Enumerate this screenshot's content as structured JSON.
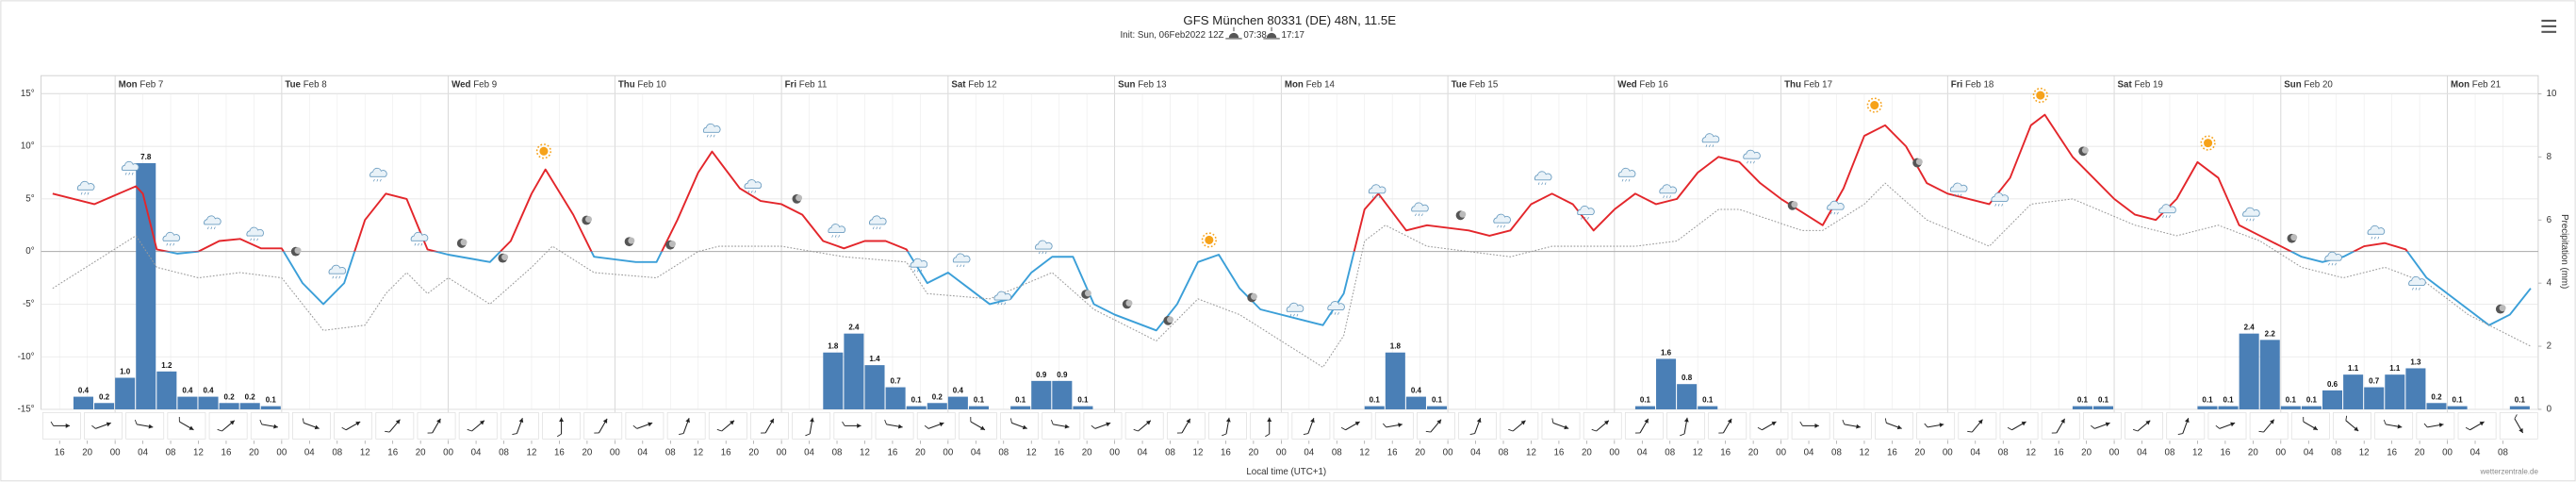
{
  "chart_data": {
    "type": "meteogram",
    "title": "GFS München 80331 (DE) 48N, 11.5E",
    "subtitle": "Init: Sun, 06Feb2022 12Z",
    "sunrise": "07:38",
    "sunset": "17:17",
    "xlabel": "Local time (UTC+1)",
    "y2label": "Precipitation (mm)",
    "credit": "wetterzentrale.de",
    "xlim": [
      "2022-02-06T13:20",
      "2022-02-21T13:05"
    ],
    "ylim": [
      -15,
      15
    ],
    "yticks": [
      {
        "value": 15,
        "label": "15°"
      },
      {
        "value": 10,
        "label": "10°"
      },
      {
        "value": 5,
        "label": "5°"
      },
      {
        "value": 0,
        "label": "0°"
      },
      {
        "value": -5,
        "label": "-5°"
      },
      {
        "value": -10,
        "label": "-10°"
      },
      {
        "value": -15,
        "label": "-15°"
      }
    ],
    "y2lim": [
      0,
      10
    ],
    "y2ticks": [
      0,
      2,
      4,
      6,
      8,
      10
    ],
    "grid": true,
    "days": [
      {
        "value": "2022-02-07T00:00",
        "weekday": "Mon",
        "date": "Feb 7"
      },
      {
        "value": "2022-02-08T00:00",
        "weekday": "Tue",
        "date": "Feb 8"
      },
      {
        "value": "2022-02-09T00:00",
        "weekday": "Wed",
        "date": "Feb 9"
      },
      {
        "value": "2022-02-10T00:00",
        "weekday": "Thu",
        "date": "Feb 10"
      },
      {
        "value": "2022-02-11T00:00",
        "weekday": "Fri",
        "date": "Feb 11"
      },
      {
        "value": "2022-02-12T00:00",
        "weekday": "Sat",
        "date": "Feb 12"
      },
      {
        "value": "2022-02-13T00:00",
        "weekday": "Sun",
        "date": "Feb 13"
      },
      {
        "value": "2022-02-14T00:00",
        "weekday": "Mon",
        "date": "Feb 14"
      },
      {
        "value": "2022-02-15T00:00",
        "weekday": "Tue",
        "date": "Feb 15"
      },
      {
        "value": "2022-02-16T00:00",
        "weekday": "Wed",
        "date": "Feb 16"
      },
      {
        "value": "2022-02-17T00:00",
        "weekday": "Thu",
        "date": "Feb 17"
      },
      {
        "value": "2022-02-18T00:00",
        "weekday": "Fri",
        "date": "Feb 18"
      },
      {
        "value": "2022-02-19T00:00",
        "weekday": "Sat",
        "date": "Feb 19"
      },
      {
        "value": "2022-02-20T00:00",
        "weekday": "Sun",
        "date": "Feb 20"
      },
      {
        "value": "2022-02-21T00:00",
        "weekday": "Mon",
        "date": "Feb 21"
      }
    ],
    "hour_ticks": [
      {
        "value": "2022-02-06T16:00",
        "label": "16"
      },
      {
        "value": "2022-02-06T20:00",
        "label": "20"
      },
      {
        "value": "2022-02-07T00:00",
        "label": "00"
      },
      {
        "value": "2022-02-07T04:00",
        "label": "04"
      },
      {
        "value": "2022-02-07T08:00",
        "label": "08"
      },
      {
        "value": "2022-02-07T12:00",
        "label": "12"
      },
      {
        "value": "2022-02-07T16:00",
        "label": "16"
      },
      {
        "value": "2022-02-07T20:00",
        "label": "20"
      },
      {
        "value": "2022-02-08T00:00",
        "label": "00"
      },
      {
        "value": "2022-02-08T04:00",
        "label": "04"
      },
      {
        "value": "2022-02-08T08:00",
        "label": "08"
      },
      {
        "value": "2022-02-08T12:00",
        "label": "12"
      },
      {
        "value": "2022-02-08T16:00",
        "label": "16"
      },
      {
        "value": "2022-02-08T20:00",
        "label": "20"
      },
      {
        "value": "2022-02-09T00:00",
        "label": "00"
      },
      {
        "value": "2022-02-09T04:00",
        "label": "04"
      },
      {
        "value": "2022-02-09T08:00",
        "label": "08"
      },
      {
        "value": "2022-02-09T12:00",
        "label": "12"
      },
      {
        "value": "2022-02-09T16:00",
        "label": "16"
      },
      {
        "value": "2022-02-09T20:00",
        "label": "20"
      },
      {
        "value": "2022-02-10T00:00",
        "label": "00"
      },
      {
        "value": "2022-02-10T04:00",
        "label": "04"
      },
      {
        "value": "2022-02-10T08:00",
        "label": "08"
      },
      {
        "value": "2022-02-10T12:00",
        "label": "12"
      },
      {
        "value": "2022-02-10T16:00",
        "label": "16"
      },
      {
        "value": "2022-02-10T20:00",
        "label": "20"
      },
      {
        "value": "2022-02-11T00:00",
        "label": "00"
      },
      {
        "value": "2022-02-11T04:00",
        "label": "04"
      },
      {
        "value": "2022-02-11T08:00",
        "label": "08"
      },
      {
        "value": "2022-02-11T12:00",
        "label": "12"
      },
      {
        "value": "2022-02-11T16:00",
        "label": "16"
      },
      {
        "value": "2022-02-11T20:00",
        "label": "20"
      },
      {
        "value": "2022-02-12T00:00",
        "label": "00"
      },
      {
        "value": "2022-02-12T04:00",
        "label": "04"
      },
      {
        "value": "2022-02-12T08:00",
        "label": "08"
      },
      {
        "value": "2022-02-12T12:00",
        "label": "12"
      },
      {
        "value": "2022-02-12T16:00",
        "label": "16"
      },
      {
        "value": "2022-02-12T20:00",
        "label": "20"
      },
      {
        "value": "2022-02-13T00:00",
        "label": "00"
      },
      {
        "value": "2022-02-13T04:00",
        "label": "04"
      },
      {
        "value": "2022-02-13T08:00",
        "label": "08"
      },
      {
        "value": "2022-02-13T12:00",
        "label": "12"
      },
      {
        "value": "2022-02-13T16:00",
        "label": "16"
      },
      {
        "value": "2022-02-13T20:00",
        "label": "20"
      },
      {
        "value": "2022-02-14T00:00",
        "label": "00"
      },
      {
        "value": "2022-02-14T04:00",
        "label": "04"
      },
      {
        "value": "2022-02-14T08:00",
        "label": "08"
      },
      {
        "value": "2022-02-14T12:00",
        "label": "12"
      },
      {
        "value": "2022-02-14T16:00",
        "label": "16"
      },
      {
        "value": "2022-02-14T20:00",
        "label": "20"
      },
      {
        "value": "2022-02-15T00:00",
        "label": "00"
      },
      {
        "value": "2022-02-15T04:00",
        "label": "04"
      },
      {
        "value": "2022-02-15T08:00",
        "label": "08"
      },
      {
        "value": "2022-02-15T12:00",
        "label": "12"
      },
      {
        "value": "2022-02-15T16:00",
        "label": "16"
      },
      {
        "value": "2022-02-15T20:00",
        "label": "20"
      },
      {
        "value": "2022-02-16T00:00",
        "label": "00"
      },
      {
        "value": "2022-02-16T04:00",
        "label": "04"
      },
      {
        "value": "2022-02-16T08:00",
        "label": "08"
      },
      {
        "value": "2022-02-16T12:00",
        "label": "12"
      },
      {
        "value": "2022-02-16T16:00",
        "label": "16"
      },
      {
        "value": "2022-02-16T20:00",
        "label": "20"
      },
      {
        "value": "2022-02-17T00:00",
        "label": "00"
      },
      {
        "value": "2022-02-17T04:00",
        "label": "04"
      },
      {
        "value": "2022-02-17T08:00",
        "label": "08"
      },
      {
        "value": "2022-02-17T12:00",
        "label": "12"
      },
      {
        "value": "2022-02-17T16:00",
        "label": "16"
      },
      {
        "value": "2022-02-17T20:00",
        "label": "20"
      },
      {
        "value": "2022-02-18T00:00",
        "label": "00"
      },
      {
        "value": "2022-02-18T04:00",
        "label": "04"
      },
      {
        "value": "2022-02-18T08:00",
        "label": "08"
      },
      {
        "value": "2022-02-18T12:00",
        "label": "12"
      },
      {
        "value": "2022-02-18T16:00",
        "label": "16"
      },
      {
        "value": "2022-02-18T20:00",
        "label": "20"
      },
      {
        "value": "2022-02-19T00:00",
        "label": "00"
      },
      {
        "value": "2022-02-19T04:00",
        "label": "04"
      },
      {
        "value": "2022-02-19T08:00",
        "label": "08"
      },
      {
        "value": "2022-02-19T12:00",
        "label": "12"
      },
      {
        "value": "2022-02-19T16:00",
        "label": "16"
      },
      {
        "value": "2022-02-19T20:00",
        "label": "20"
      },
      {
        "value": "2022-02-20T00:00",
        "label": "00"
      },
      {
        "value": "2022-02-20T04:00",
        "label": "04"
      },
      {
        "value": "2022-02-20T08:00",
        "label": "08"
      },
      {
        "value": "2022-02-20T12:00",
        "label": "12"
      },
      {
        "value": "2022-02-20T16:00",
        "label": "16"
      },
      {
        "value": "2022-02-20T20:00",
        "label": "20"
      },
      {
        "value": "2022-02-21T00:00",
        "label": "00"
      },
      {
        "value": "2022-02-21T04:00",
        "label": "04"
      },
      {
        "value": "2022-02-21T08:00",
        "label": "08"
      }
    ],
    "series": [
      {
        "color": "#e3262b",
        "color_below_zero": "#3b9fd8",
        "dash": false,
        "x": [
          "2022-02-06T15:00",
          "2022-02-06T21:00",
          "2022-02-07T03:00",
          "2022-02-07T04:00",
          "2022-02-07T06:00",
          "2022-02-07T09:00",
          "2022-02-07T12:00",
          "2022-02-07T15:00",
          "2022-02-07T18:00",
          "2022-02-07T21:00",
          "2022-02-08T00:00",
          "2022-02-08T03:00",
          "2022-02-08T06:00",
          "2022-02-08T09:00",
          "2022-02-08T12:00",
          "2022-02-08T15:00",
          "2022-02-08T18:00",
          "2022-02-08T21:00",
          "2022-02-09T00:00",
          "2022-02-09T06:00",
          "2022-02-09T09:00",
          "2022-02-09T12:00",
          "2022-02-09T14:00",
          "2022-02-09T18:00",
          "2022-02-09T21:00",
          "2022-02-10T03:00",
          "2022-02-10T06:00",
          "2022-02-10T09:00",
          "2022-02-10T12:00",
          "2022-02-10T14:00",
          "2022-02-10T18:00",
          "2022-02-10T21:00",
          "2022-02-11T00:00",
          "2022-02-11T03:00",
          "2022-02-11T06:00",
          "2022-02-11T09:00",
          "2022-02-11T12:00",
          "2022-02-11T15:00",
          "2022-02-11T18:00",
          "2022-02-11T21:00",
          "2022-02-12T00:00",
          "2022-02-12T03:00",
          "2022-02-12T06:00",
          "2022-02-12T09:00",
          "2022-02-12T12:00",
          "2022-02-12T15:00",
          "2022-02-12T18:00",
          "2022-02-12T21:00",
          "2022-02-13T00:00",
          "2022-02-13T06:00",
          "2022-02-13T09:00",
          "2022-02-13T12:00",
          "2022-02-13T15:00",
          "2022-02-13T18:00",
          "2022-02-13T21:00",
          "2022-02-14T03:00",
          "2022-02-14T06:00",
          "2022-02-14T09:00",
          "2022-02-14T12:00",
          "2022-02-14T14:00",
          "2022-02-14T18:00",
          "2022-02-14T21:00",
          "2022-02-15T03:00",
          "2022-02-15T06:00",
          "2022-02-15T09:00",
          "2022-02-15T12:00",
          "2022-02-15T15:00",
          "2022-02-15T18:00",
          "2022-02-15T21:00",
          "2022-02-16T00:00",
          "2022-02-16T03:00",
          "2022-02-16T06:00",
          "2022-02-16T09:00",
          "2022-02-16T12:00",
          "2022-02-16T15:00",
          "2022-02-16T18:00",
          "2022-02-16T21:00",
          "2022-02-17T00:00",
          "2022-02-17T06:00",
          "2022-02-17T09:00",
          "2022-02-17T12:00",
          "2022-02-17T15:00",
          "2022-02-17T18:00",
          "2022-02-17T21:00",
          "2022-02-18T00:00",
          "2022-02-18T06:00",
          "2022-02-18T09:00",
          "2022-02-18T12:00",
          "2022-02-18T14:00",
          "2022-02-18T18:00",
          "2022-02-18T21:00",
          "2022-02-19T00:00",
          "2022-02-19T03:00",
          "2022-02-19T06:00",
          "2022-02-19T09:00",
          "2022-02-19T12:00",
          "2022-02-19T15:00",
          "2022-02-19T18:00",
          "2022-02-19T21:00",
          "2022-02-20T00:00",
          "2022-02-20T03:00",
          "2022-02-20T06:00",
          "2022-02-20T09:00",
          "2022-02-20T12:00",
          "2022-02-20T15:00",
          "2022-02-20T18:00",
          "2022-02-20T21:00",
          "2022-02-21T00:00",
          "2022-02-21T06:00",
          "2022-02-21T09:00",
          "2022-02-21T12:00"
        ],
        "values": [
          5.5,
          4.5,
          6.2,
          5.5,
          0.2,
          -0.2,
          0,
          1,
          1.2,
          0.3,
          0.3,
          -3,
          -5,
          -3,
          3,
          5.5,
          5,
          0.2,
          -0.3,
          -1,
          1,
          5.5,
          7.8,
          3.5,
          -0.5,
          -1,
          -1,
          3,
          7.5,
          9.5,
          6,
          4.8,
          4.5,
          3.5,
          1,
          0.3,
          1,
          1,
          0.2,
          -3,
          -2,
          -3.5,
          -5,
          -4.5,
          -2,
          -0.5,
          -0.5,
          -5,
          -6,
          -7.5,
          -5,
          -1,
          -0.3,
          -3.5,
          -5.5,
          -6.5,
          -7,
          -4,
          4,
          5.5,
          2,
          2.5,
          2,
          1.5,
          2,
          4.5,
          5.5,
          4.5,
          2,
          4,
          5.5,
          4.5,
          5,
          7.5,
          9,
          8.5,
          6.5,
          5,
          2.5,
          6,
          11,
          12,
          10,
          6.5,
          5.5,
          4.5,
          7,
          12,
          13,
          9,
          7,
          5,
          3.5,
          3,
          5,
          8.5,
          7,
          2.5,
          1.5,
          0.5,
          -0.5,
          -1,
          -0.5,
          0.5,
          0.8,
          0.2,
          -2.5,
          -4,
          -7,
          -6,
          -3.5
        ]
      },
      {
        "color": "#9a9a9a",
        "dash": true,
        "x": [
          "2022-02-06T15:00",
          "2022-02-06T21:00",
          "2022-02-07T03:00",
          "2022-02-07T06:00",
          "2022-02-07T12:00",
          "2022-02-07T18:00",
          "2022-02-08T00:00",
          "2022-02-08T06:00",
          "2022-02-08T12:00",
          "2022-02-08T15:00",
          "2022-02-08T18:00",
          "2022-02-08T21:00",
          "2022-02-09T00:00",
          "2022-02-09T06:00",
          "2022-02-09T12:00",
          "2022-02-09T15:00",
          "2022-02-09T21:00",
          "2022-02-10T06:00",
          "2022-02-10T12:00",
          "2022-02-10T15:00",
          "2022-02-11T00:00",
          "2022-02-11T09:00",
          "2022-02-11T18:00",
          "2022-02-11T21:00",
          "2022-02-12T06:00",
          "2022-02-12T15:00",
          "2022-02-12T21:00",
          "2022-02-13T06:00",
          "2022-02-13T12:00",
          "2022-02-13T18:00",
          "2022-02-14T06:00",
          "2022-02-14T09:00",
          "2022-02-14T12:00",
          "2022-02-14T15:00",
          "2022-02-14T21:00",
          "2022-02-15T09:00",
          "2022-02-15T15:00",
          "2022-02-16T03:00",
          "2022-02-16T09:00",
          "2022-02-16T15:00",
          "2022-02-16T18:00",
          "2022-02-17T03:00",
          "2022-02-17T06:00",
          "2022-02-17T12:00",
          "2022-02-17T15:00",
          "2022-02-17T21:00",
          "2022-02-18T06:00",
          "2022-02-18T12:00",
          "2022-02-18T18:00",
          "2022-02-19T03:00",
          "2022-02-19T09:00",
          "2022-02-19T15:00",
          "2022-02-19T21:00",
          "2022-02-20T03:00",
          "2022-02-20T09:00",
          "2022-02-20T15:00",
          "2022-02-20T21:00",
          "2022-02-21T03:00",
          "2022-02-21T12:00"
        ],
        "values": [
          -3.5,
          -1,
          1.5,
          -1.5,
          -2.5,
          -2,
          -2.5,
          -7.5,
          -7,
          -4,
          -2,
          -4,
          -2.5,
          -5,
          -1.5,
          0.5,
          -2,
          -2.5,
          0,
          0.5,
          0.5,
          -0.5,
          -1,
          -4,
          -4.5,
          -2,
          -5.5,
          -8.5,
          -4.5,
          -6,
          -11,
          -8,
          1,
          2.5,
          0.5,
          -0.5,
          0.5,
          0.5,
          1,
          4,
          4,
          2,
          2,
          4.5,
          6.5,
          3,
          0.5,
          4.5,
          5,
          2.5,
          1.5,
          2.5,
          1,
          -1.5,
          -2.5,
          -1.5,
          -3,
          -6,
          -9
        ]
      }
    ],
    "precipitation": {
      "axis": "y2",
      "color": "#4a7fb6",
      "x": [
        "2022-02-06T18:00",
        "2022-02-06T21:00",
        "2022-02-07T00:00",
        "2022-02-07T03:00",
        "2022-02-07T06:00",
        "2022-02-07T09:00",
        "2022-02-07T12:00",
        "2022-02-07T15:00",
        "2022-02-07T18:00",
        "2022-02-07T21:00",
        "2022-02-11T06:00",
        "2022-02-11T09:00",
        "2022-02-11T12:00",
        "2022-02-11T15:00",
        "2022-02-11T18:00",
        "2022-02-11T21:00",
        "2022-02-12T00:00",
        "2022-02-12T03:00",
        "2022-02-12T09:00",
        "2022-02-12T12:00",
        "2022-02-12T15:00",
        "2022-02-12T18:00",
        "2022-02-14T12:00",
        "2022-02-14T15:00",
        "2022-02-14T18:00",
        "2022-02-14T21:00",
        "2022-02-16T03:00",
        "2022-02-16T06:00",
        "2022-02-16T09:00",
        "2022-02-16T12:00",
        "2022-02-18T18:00",
        "2022-02-18T21:00",
        "2022-02-19T12:00",
        "2022-02-19T15:00",
        "2022-02-19T18:00",
        "2022-02-19T21:00",
        "2022-02-20T00:00",
        "2022-02-20T03:00",
        "2022-02-20T06:00",
        "2022-02-20T09:00",
        "2022-02-20T12:00",
        "2022-02-20T15:00",
        "2022-02-20T18:00",
        "2022-02-20T21:00",
        "2022-02-21T00:00",
        "2022-02-21T09:00"
      ],
      "values": [
        0.4,
        0.2,
        1.0,
        7.8,
        1.2,
        0.4,
        0.4,
        0.2,
        0.2,
        0.1,
        1.8,
        2.4,
        1.4,
        0.7,
        0.1,
        0.2,
        0.4,
        0.1,
        0.1,
        0.9,
        0.9,
        0.1,
        0.1,
        1.8,
        0.4,
        0.1,
        0.1,
        1.6,
        0.8,
        0.1,
        0.1,
        0.1,
        0.1,
        0.1,
        2.4,
        2.2,
        0.1,
        0.1,
        0.6,
        1.1,
        0.7,
        1.1,
        1.3,
        0.2,
        0.1,
        0.1
      ],
      "value_labels": [
        "0.4",
        "0.2",
        "1.0",
        "7.8",
        "1.2",
        "0.4",
        "0.4",
        "0.2",
        "0.2",
        "0.1",
        "1.8",
        "2.4",
        "1.4",
        "0.7",
        "0.1",
        "0.2",
        "0.4",
        "0.1",
        "0.1",
        "0.9",
        "0.9",
        "0.1",
        "0.1",
        "1.8",
        "0.4",
        "0.1",
        "0.1",
        "1.6",
        "0.8",
        "0.1",
        "0.1",
        "0.1",
        "0.1",
        "0.1",
        "2.4",
        "2.2",
        "0.1",
        "0.1",
        "0.6",
        "1.1",
        "0.7",
        "1.1",
        "1.3",
        "0.2",
        "0.1",
        "0.1"
      ]
    }
  }
}
